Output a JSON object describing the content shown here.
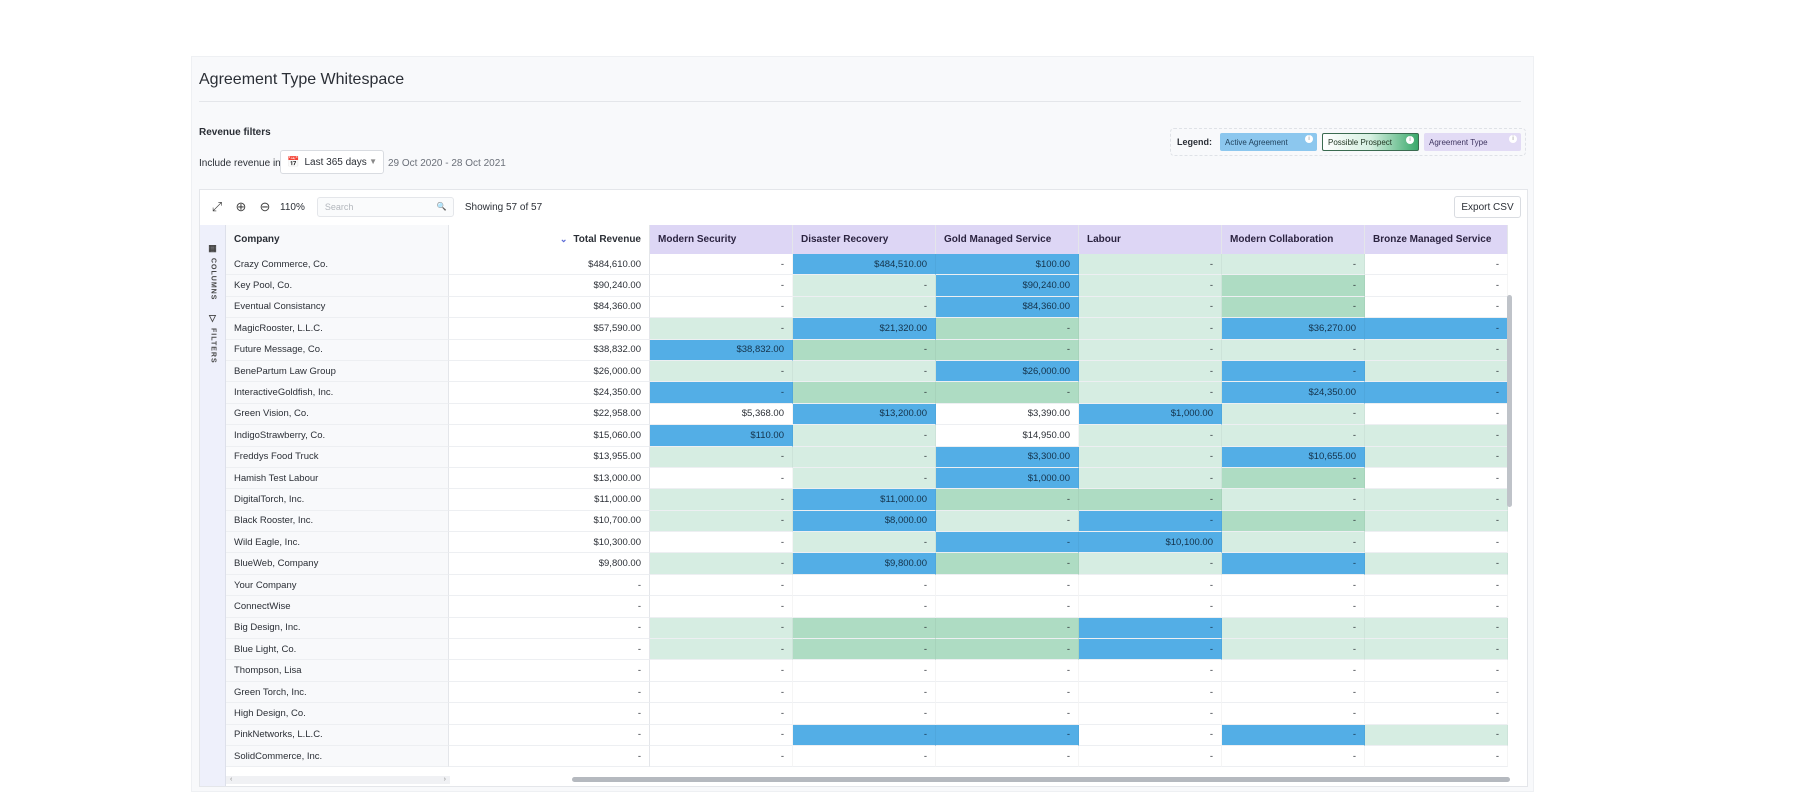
{
  "page": {
    "title": "Agreement Type Whitespace",
    "revenue_filters_label": "Revenue filters",
    "include_label": "Include revenue in:",
    "date_select_value": "Last 365 days",
    "date_range": "29 Oct 2020 - 28 Oct 2021"
  },
  "legend": {
    "label": "Legend:",
    "active": "Active Agreement",
    "prospect": "Possible Prospect",
    "type": "Agreement Type"
  },
  "toolbar": {
    "zoom_level": "110%",
    "search_placeholder": "Search",
    "showing": "Showing 57 of 57",
    "export_label": "Export CSV"
  },
  "side": {
    "columns_label": "COLUMNS",
    "filters_label": "FILTERS"
  },
  "colors": {
    "active": "#53aee6",
    "prospect_light": "#d6ede2",
    "prospect_mid": "#aedcc3",
    "agreement_header": "#ddd6f5"
  },
  "table": {
    "headers": {
      "company": "Company",
      "total": "Total Revenue",
      "agreements": [
        "Modern Security",
        "Disaster Recovery",
        "Gold Managed Service",
        "Labour",
        "Modern Collaboration",
        "Bronze Managed Service"
      ]
    },
    "rows": [
      {
        "company": "Crazy Commerce, Co.",
        "total": "$484,610.00",
        "cells": [
          {
            "v": "-",
            "s": "none"
          },
          {
            "v": "$484,510.00",
            "s": "active"
          },
          {
            "v": "$100.00",
            "s": "active"
          },
          {
            "v": "-",
            "s": "light"
          },
          {
            "v": "-",
            "s": "light"
          },
          {
            "v": "-",
            "s": "none"
          }
        ]
      },
      {
        "company": "Key Pool, Co.",
        "total": "$90,240.00",
        "cells": [
          {
            "v": "-",
            "s": "none"
          },
          {
            "v": "-",
            "s": "light"
          },
          {
            "v": "$90,240.00",
            "s": "active"
          },
          {
            "v": "-",
            "s": "light"
          },
          {
            "v": "-",
            "s": "mid"
          },
          {
            "v": "-",
            "s": "none"
          }
        ]
      },
      {
        "company": "Eventual Consistancy",
        "total": "$84,360.00",
        "cells": [
          {
            "v": "-",
            "s": "none"
          },
          {
            "v": "-",
            "s": "light"
          },
          {
            "v": "$84,360.00",
            "s": "active"
          },
          {
            "v": "-",
            "s": "light"
          },
          {
            "v": "-",
            "s": "mid"
          },
          {
            "v": "-",
            "s": "none"
          }
        ]
      },
      {
        "company": "MagicRooster, L.L.C.",
        "total": "$57,590.00",
        "cells": [
          {
            "v": "-",
            "s": "light"
          },
          {
            "v": "$21,320.00",
            "s": "active"
          },
          {
            "v": "-",
            "s": "mid"
          },
          {
            "v": "-",
            "s": "light"
          },
          {
            "v": "$36,270.00",
            "s": "active"
          },
          {
            "v": "-",
            "s": "active"
          }
        ]
      },
      {
        "company": "Future Message, Co.",
        "total": "$38,832.00",
        "cells": [
          {
            "v": "$38,832.00",
            "s": "active"
          },
          {
            "v": "-",
            "s": "mid"
          },
          {
            "v": "-",
            "s": "mid"
          },
          {
            "v": "-",
            "s": "light"
          },
          {
            "v": "-",
            "s": "light"
          },
          {
            "v": "-",
            "s": "light"
          }
        ]
      },
      {
        "company": "BenePartum Law Group",
        "total": "$26,000.00",
        "cells": [
          {
            "v": "-",
            "s": "light"
          },
          {
            "v": "-",
            "s": "light"
          },
          {
            "v": "$26,000.00",
            "s": "active"
          },
          {
            "v": "-",
            "s": "light"
          },
          {
            "v": "-",
            "s": "active"
          },
          {
            "v": "-",
            "s": "light"
          }
        ]
      },
      {
        "company": "InteractiveGoldfish, Inc.",
        "total": "$24,350.00",
        "cells": [
          {
            "v": "-",
            "s": "active"
          },
          {
            "v": "-",
            "s": "mid"
          },
          {
            "v": "-",
            "s": "mid"
          },
          {
            "v": "-",
            "s": "light"
          },
          {
            "v": "$24,350.00",
            "s": "active"
          },
          {
            "v": "-",
            "s": "active"
          }
        ]
      },
      {
        "company": "Green Vision, Co.",
        "total": "$22,958.00",
        "cells": [
          {
            "v": "$5,368.00",
            "s": "none"
          },
          {
            "v": "$13,200.00",
            "s": "active"
          },
          {
            "v": "$3,390.00",
            "s": "none"
          },
          {
            "v": "$1,000.00",
            "s": "active"
          },
          {
            "v": "-",
            "s": "light"
          },
          {
            "v": "-",
            "s": "none"
          }
        ]
      },
      {
        "company": "IndigoStrawberry, Co.",
        "total": "$15,060.00",
        "cells": [
          {
            "v": "$110.00",
            "s": "active"
          },
          {
            "v": "-",
            "s": "light"
          },
          {
            "v": "$14,950.00",
            "s": "none"
          },
          {
            "v": "-",
            "s": "light"
          },
          {
            "v": "-",
            "s": "light"
          },
          {
            "v": "-",
            "s": "light"
          }
        ]
      },
      {
        "company": "Freddys Food Truck",
        "total": "$13,955.00",
        "cells": [
          {
            "v": "-",
            "s": "light"
          },
          {
            "v": "-",
            "s": "light"
          },
          {
            "v": "$3,300.00",
            "s": "active"
          },
          {
            "v": "-",
            "s": "light"
          },
          {
            "v": "$10,655.00",
            "s": "active"
          },
          {
            "v": "-",
            "s": "light"
          }
        ]
      },
      {
        "company": "Hamish Test Labour",
        "total": "$13,000.00",
        "cells": [
          {
            "v": "-",
            "s": "none"
          },
          {
            "v": "-",
            "s": "light"
          },
          {
            "v": "$1,000.00",
            "s": "active"
          },
          {
            "v": "-",
            "s": "light"
          },
          {
            "v": "-",
            "s": "mid"
          },
          {
            "v": "-",
            "s": "none"
          }
        ]
      },
      {
        "company": "DigitalTorch, Inc.",
        "total": "$11,000.00",
        "cells": [
          {
            "v": "-",
            "s": "light"
          },
          {
            "v": "$11,000.00",
            "s": "active"
          },
          {
            "v": "-",
            "s": "mid"
          },
          {
            "v": "-",
            "s": "mid"
          },
          {
            "v": "-",
            "s": "light"
          },
          {
            "v": "-",
            "s": "light"
          }
        ]
      },
      {
        "company": "Black Rooster, Inc.",
        "total": "$10,700.00",
        "cells": [
          {
            "v": "-",
            "s": "light"
          },
          {
            "v": "$8,000.00",
            "s": "active"
          },
          {
            "v": "-",
            "s": "light"
          },
          {
            "v": "-",
            "s": "active"
          },
          {
            "v": "-",
            "s": "mid"
          },
          {
            "v": "-",
            "s": "light"
          }
        ]
      },
      {
        "company": "Wild Eagle, Inc.",
        "total": "$10,300.00",
        "cells": [
          {
            "v": "-",
            "s": "none"
          },
          {
            "v": "-",
            "s": "light"
          },
          {
            "v": "-",
            "s": "active"
          },
          {
            "v": "$10,100.00",
            "s": "active"
          },
          {
            "v": "-",
            "s": "light"
          },
          {
            "v": "-",
            "s": "none"
          }
        ]
      },
      {
        "company": "BlueWeb, Company",
        "total": "$9,800.00",
        "cells": [
          {
            "v": "-",
            "s": "light"
          },
          {
            "v": "$9,800.00",
            "s": "active"
          },
          {
            "v": "-",
            "s": "mid"
          },
          {
            "v": "-",
            "s": "light"
          },
          {
            "v": "-",
            "s": "active"
          },
          {
            "v": "-",
            "s": "light"
          }
        ]
      },
      {
        "company": "Your Company",
        "total": "-",
        "cells": [
          {
            "v": "-",
            "s": "none"
          },
          {
            "v": "-",
            "s": "none"
          },
          {
            "v": "-",
            "s": "none"
          },
          {
            "v": "-",
            "s": "none"
          },
          {
            "v": "-",
            "s": "none"
          },
          {
            "v": "-",
            "s": "none"
          }
        ]
      },
      {
        "company": "ConnectWise",
        "total": "-",
        "cells": [
          {
            "v": "-",
            "s": "none"
          },
          {
            "v": "-",
            "s": "none"
          },
          {
            "v": "-",
            "s": "none"
          },
          {
            "v": "-",
            "s": "none"
          },
          {
            "v": "-",
            "s": "none"
          },
          {
            "v": "-",
            "s": "none"
          }
        ]
      },
      {
        "company": "Big Design, Inc.",
        "total": "-",
        "cells": [
          {
            "v": "-",
            "s": "light"
          },
          {
            "v": "-",
            "s": "mid"
          },
          {
            "v": "-",
            "s": "mid"
          },
          {
            "v": "-",
            "s": "active"
          },
          {
            "v": "-",
            "s": "light"
          },
          {
            "v": "-",
            "s": "light"
          }
        ]
      },
      {
        "company": "Blue Light, Co.",
        "total": "-",
        "cells": [
          {
            "v": "-",
            "s": "light"
          },
          {
            "v": "-",
            "s": "mid"
          },
          {
            "v": "-",
            "s": "mid"
          },
          {
            "v": "-",
            "s": "active"
          },
          {
            "v": "-",
            "s": "light"
          },
          {
            "v": "-",
            "s": "light"
          }
        ]
      },
      {
        "company": "Thompson, Lisa",
        "total": "-",
        "cells": [
          {
            "v": "-",
            "s": "none"
          },
          {
            "v": "-",
            "s": "none"
          },
          {
            "v": "-",
            "s": "none"
          },
          {
            "v": "-",
            "s": "none"
          },
          {
            "v": "-",
            "s": "none"
          },
          {
            "v": "-",
            "s": "none"
          }
        ]
      },
      {
        "company": "Green Torch, Inc.",
        "total": "-",
        "cells": [
          {
            "v": "-",
            "s": "none"
          },
          {
            "v": "-",
            "s": "none"
          },
          {
            "v": "-",
            "s": "none"
          },
          {
            "v": "-",
            "s": "none"
          },
          {
            "v": "-",
            "s": "none"
          },
          {
            "v": "-",
            "s": "none"
          }
        ]
      },
      {
        "company": "High Design, Co.",
        "total": "-",
        "cells": [
          {
            "v": "-",
            "s": "none"
          },
          {
            "v": "-",
            "s": "none"
          },
          {
            "v": "-",
            "s": "none"
          },
          {
            "v": "-",
            "s": "none"
          },
          {
            "v": "-",
            "s": "none"
          },
          {
            "v": "-",
            "s": "none"
          }
        ]
      },
      {
        "company": "PinkNetworks, L.L.C.",
        "total": "-",
        "cells": [
          {
            "v": "-",
            "s": "none"
          },
          {
            "v": "-",
            "s": "active"
          },
          {
            "v": "-",
            "s": "active"
          },
          {
            "v": "-",
            "s": "none"
          },
          {
            "v": "-",
            "s": "active"
          },
          {
            "v": "-",
            "s": "light"
          }
        ]
      },
      {
        "company": "SolidCommerce, Inc.",
        "total": "-",
        "cells": [
          {
            "v": "-",
            "s": "none"
          },
          {
            "v": "-",
            "s": "none"
          },
          {
            "v": "-",
            "s": "none"
          },
          {
            "v": "-",
            "s": "none"
          },
          {
            "v": "-",
            "s": "none"
          },
          {
            "v": "-",
            "s": "none"
          }
        ]
      }
    ]
  }
}
